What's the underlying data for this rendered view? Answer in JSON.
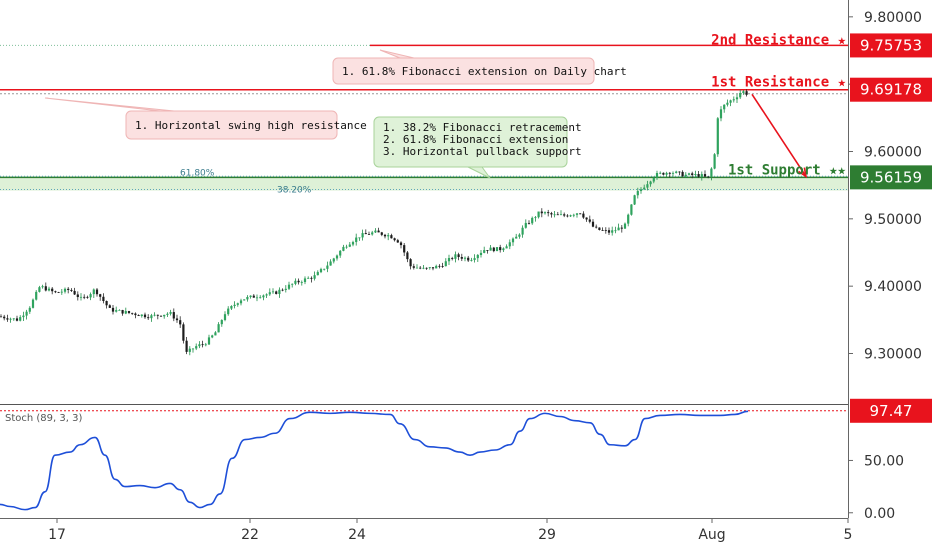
{
  "chart_data": [
    {
      "type": "candlestick",
      "y_ticks": [
        "9.80000",
        "9.70000",
        "9.60000",
        "9.50000",
        "9.40000",
        "9.30000"
      ],
      "ylim": [
        9.225,
        9.825
      ],
      "x_ticks": [
        "17",
        "22",
        "24",
        "29",
        "Aug",
        "5"
      ],
      "levels": [
        {
          "name": "2nd Resistance",
          "label": "2nd Resistance ★",
          "value": 9.75753,
          "tag": "9.75753",
          "color": "#e8131d"
        },
        {
          "name": "1st Resistance",
          "label": "1st Resistance ★",
          "value": 9.69178,
          "tag": "9.69178",
          "color": "#e8131d"
        },
        {
          "name": "1st Support",
          "label": "1st Support ★★",
          "value": 9.56159,
          "tag": "9.56159",
          "color": "#2e7d32"
        }
      ],
      "fib_levels": [
        {
          "label": "61.80%",
          "value": 9.5632
        },
        {
          "label": "38.20%",
          "value": 9.5435
        }
      ],
      "annotations": [
        {
          "id": "ann-2nd",
          "lines": [
            "1. 61.8% Fibonacci extension on Daily chart"
          ],
          "style": "red"
        },
        {
          "id": "ann-1st",
          "lines": [
            "1. Horizontal swing high resistance"
          ],
          "style": "red"
        },
        {
          "id": "ann-sup",
          "lines": [
            "1. 38.2% Fibonacci retracement",
            "2. 61.8% Fibonacci extension",
            "3. Horizontal pullback support"
          ],
          "style": "green"
        }
      ],
      "price_path": [
        [
          0,
          9.355
        ],
        [
          18,
          9.35
        ],
        [
          30,
          9.37
        ],
        [
          40,
          9.4
        ],
        [
          55,
          9.39
        ],
        [
          70,
          9.395
        ],
        [
          82,
          9.38
        ],
        [
          95,
          9.395
        ],
        [
          110,
          9.365
        ],
        [
          130,
          9.36
        ],
        [
          150,
          9.355
        ],
        [
          170,
          9.36
        ],
        [
          180,
          9.345
        ],
        [
          186,
          9.3
        ],
        [
          195,
          9.31
        ],
        [
          205,
          9.315
        ],
        [
          215,
          9.33
        ],
        [
          225,
          9.36
        ],
        [
          240,
          9.38
        ],
        [
          255,
          9.385
        ],
        [
          275,
          9.39
        ],
        [
          295,
          9.405
        ],
        [
          315,
          9.415
        ],
        [
          330,
          9.435
        ],
        [
          345,
          9.46
        ],
        [
          360,
          9.475
        ],
        [
          375,
          9.48
        ],
        [
          390,
          9.475
        ],
        [
          400,
          9.465
        ],
        [
          410,
          9.43
        ],
        [
          425,
          9.425
        ],
        [
          440,
          9.43
        ],
        [
          455,
          9.445
        ],
        [
          470,
          9.44
        ],
        [
          485,
          9.455
        ],
        [
          500,
          9.455
        ],
        [
          515,
          9.47
        ],
        [
          525,
          9.49
        ],
        [
          540,
          9.51
        ],
        [
          555,
          9.505
        ],
        [
          565,
          9.505
        ],
        [
          580,
          9.51
        ],
        [
          595,
          9.485
        ],
        [
          610,
          9.48
        ],
        [
          625,
          9.49
        ],
        [
          635,
          9.535
        ],
        [
          645,
          9.55
        ],
        [
          655,
          9.565
        ],
        [
          670,
          9.57
        ],
        [
          685,
          9.565
        ],
        [
          700,
          9.565
        ],
        [
          708,
          9.56
        ],
        [
          714,
          9.585
        ],
        [
          718,
          9.655
        ],
        [
          725,
          9.67
        ],
        [
          735,
          9.68
        ],
        [
          742,
          9.69
        ],
        [
          748,
          9.685
        ]
      ],
      "projection": {
        "from": 9.685,
        "to": 9.563
      }
    },
    {
      "type": "line",
      "indicator": "Stoch (89, 3, 3)",
      "ylim": [
        -5,
        103
      ],
      "y_ticks": [
        "50.00",
        "0.00"
      ],
      "current": 97.47,
      "current_tag": "97.47",
      "stoch_path": [
        [
          0,
          8
        ],
        [
          10,
          6
        ],
        [
          25,
          3
        ],
        [
          35,
          5
        ],
        [
          45,
          20
        ],
        [
          55,
          55
        ],
        [
          70,
          58
        ],
        [
          80,
          65
        ],
        [
          95,
          72
        ],
        [
          105,
          55
        ],
        [
          115,
          32
        ],
        [
          125,
          25
        ],
        [
          140,
          26
        ],
        [
          155,
          24
        ],
        [
          170,
          28
        ],
        [
          180,
          22
        ],
        [
          190,
          10
        ],
        [
          200,
          5
        ],
        [
          210,
          8
        ],
        [
          220,
          18
        ],
        [
          232,
          52
        ],
        [
          245,
          70
        ],
        [
          260,
          72
        ],
        [
          275,
          76
        ],
        [
          290,
          90
        ],
        [
          310,
          96
        ],
        [
          330,
          95
        ],
        [
          350,
          96
        ],
        [
          370,
          95
        ],
        [
          390,
          94
        ],
        [
          400,
          85
        ],
        [
          415,
          70
        ],
        [
          430,
          63
        ],
        [
          445,
          62
        ],
        [
          460,
          58
        ],
        [
          470,
          55
        ],
        [
          480,
          58
        ],
        [
          495,
          60
        ],
        [
          510,
          65
        ],
        [
          520,
          78
        ],
        [
          530,
          90
        ],
        [
          545,
          95
        ],
        [
          560,
          92
        ],
        [
          575,
          88
        ],
        [
          590,
          86
        ],
        [
          600,
          75
        ],
        [
          610,
          65
        ],
        [
          625,
          64
        ],
        [
          635,
          70
        ],
        [
          645,
          90
        ],
        [
          660,
          93
        ],
        [
          680,
          94
        ],
        [
          700,
          93
        ],
        [
          720,
          93
        ],
        [
          735,
          94
        ],
        [
          748,
          97
        ]
      ]
    }
  ]
}
